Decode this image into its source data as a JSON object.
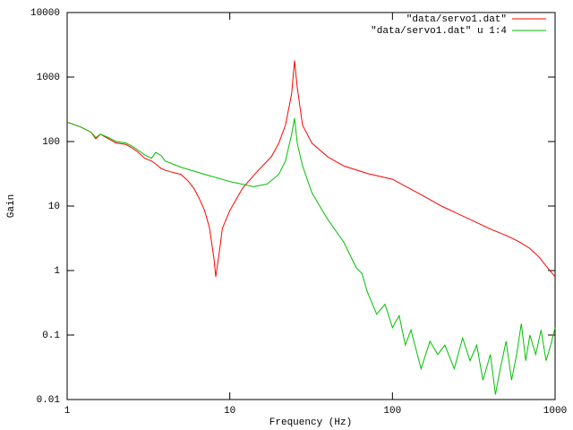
{
  "chart_data": {
    "type": "line",
    "xlabel": "Frequency (Hz)",
    "ylabel": "Gain",
    "xscale": "log",
    "yscale": "log",
    "xlim": [
      1,
      1000
    ],
    "ylim": [
      0.01,
      10000
    ],
    "xticks": [
      1,
      10,
      100,
      1000
    ],
    "yticks": [
      0.01,
      0.1,
      1,
      10,
      100,
      1000,
      10000
    ],
    "legend": "top-right",
    "series": [
      {
        "name": "\"data/servo1.dat\"",
        "color": "#ff0000",
        "x": [
          1,
          1.2,
          1.4,
          1.5,
          1.6,
          1.8,
          2,
          2.3,
          2.5,
          2.7,
          3,
          3.3,
          3.5,
          3.8,
          4,
          4.5,
          5,
          5.5,
          6,
          6.5,
          7,
          7.5,
          8,
          8.2,
          8.5,
          8.7,
          9,
          10,
          12,
          15,
          18,
          20,
          22,
          24,
          25,
          26,
          28,
          32,
          40,
          50,
          70,
          100,
          150,
          200,
          300,
          400,
          500,
          600,
          700,
          800,
          900,
          1000
        ],
        "values": [
          200,
          170,
          140,
          110,
          130,
          110,
          95,
          90,
          80,
          70,
          55,
          50,
          45,
          38,
          36,
          33,
          31,
          25,
          19,
          13,
          8.5,
          4.6,
          1.5,
          0.8,
          1.5,
          2.3,
          4.5,
          8.5,
          19,
          36,
          58,
          94,
          180,
          550,
          1800,
          680,
          180,
          94,
          58,
          42,
          32,
          26,
          15,
          10,
          6.2,
          4.4,
          3.5,
          2.8,
          2.2,
          1.6,
          1.1,
          0.8
        ]
      },
      {
        "name": "\"data/servo1.dat\" u 1:4",
        "color": "#00c000",
        "x": [
          1,
          1.2,
          1.4,
          1.5,
          1.6,
          1.8,
          2,
          2.3,
          2.5,
          2.7,
          3,
          3.3,
          3.5,
          3.8,
          4,
          5,
          7,
          10,
          14,
          17,
          20,
          22,
          24,
          25,
          26,
          28,
          32,
          40,
          50,
          60,
          65,
          70,
          80,
          90,
          100,
          110,
          120,
          130,
          150,
          170,
          190,
          210,
          240,
          270,
          300,
          330,
          360,
          400,
          430,
          460,
          500,
          540,
          580,
          620,
          660,
          700,
          760,
          820,
          880,
          940,
          1000
        ],
        "values": [
          200,
          170,
          140,
          115,
          130,
          115,
          100,
          95,
          85,
          75,
          62,
          55,
          68,
          60,
          50,
          40,
          31,
          24,
          20,
          22,
          31,
          50,
          130,
          230,
          94,
          42,
          16,
          6.2,
          2.8,
          1.1,
          0.9,
          0.47,
          0.21,
          0.3,
          0.13,
          0.2,
          0.07,
          0.12,
          0.03,
          0.08,
          0.05,
          0.07,
          0.03,
          0.09,
          0.04,
          0.07,
          0.02,
          0.05,
          0.012,
          0.03,
          0.08,
          0.02,
          0.05,
          0.15,
          0.04,
          0.1,
          0.05,
          0.12,
          0.04,
          0.07,
          0.13
        ]
      }
    ]
  }
}
